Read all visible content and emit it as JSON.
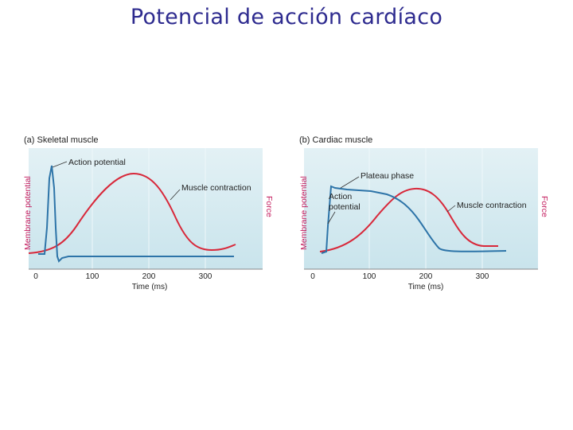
{
  "slide": {
    "title": "Potencial de acción cardíaco"
  },
  "panels": [
    {
      "label": "(a)  Skeletal muscle",
      "y_label_left": "Membrane potential",
      "y_label_right": "Force",
      "x_label": "Time (ms)",
      "x_ticks": [
        "0",
        "100",
        "200",
        "300"
      ],
      "annotations": [
        "Action potential",
        "Muscle contraction"
      ]
    },
    {
      "label": "(b)  Cardiac muscle",
      "y_label_left": "Membrane potential",
      "y_label_right": "Force",
      "x_label": "Time (ms)",
      "x_ticks": [
        "0",
        "100",
        "200",
        "300"
      ],
      "annotations": [
        "Plateau phase",
        "Action",
        "potential",
        "Muscle contraction"
      ]
    }
  ],
  "colors": {
    "title": "#2e2b8f",
    "panel_bg": "#d9edf2",
    "action_potential": "#2d74a8",
    "contraction": "#d8283a",
    "axis_label": "#c2185b"
  }
}
